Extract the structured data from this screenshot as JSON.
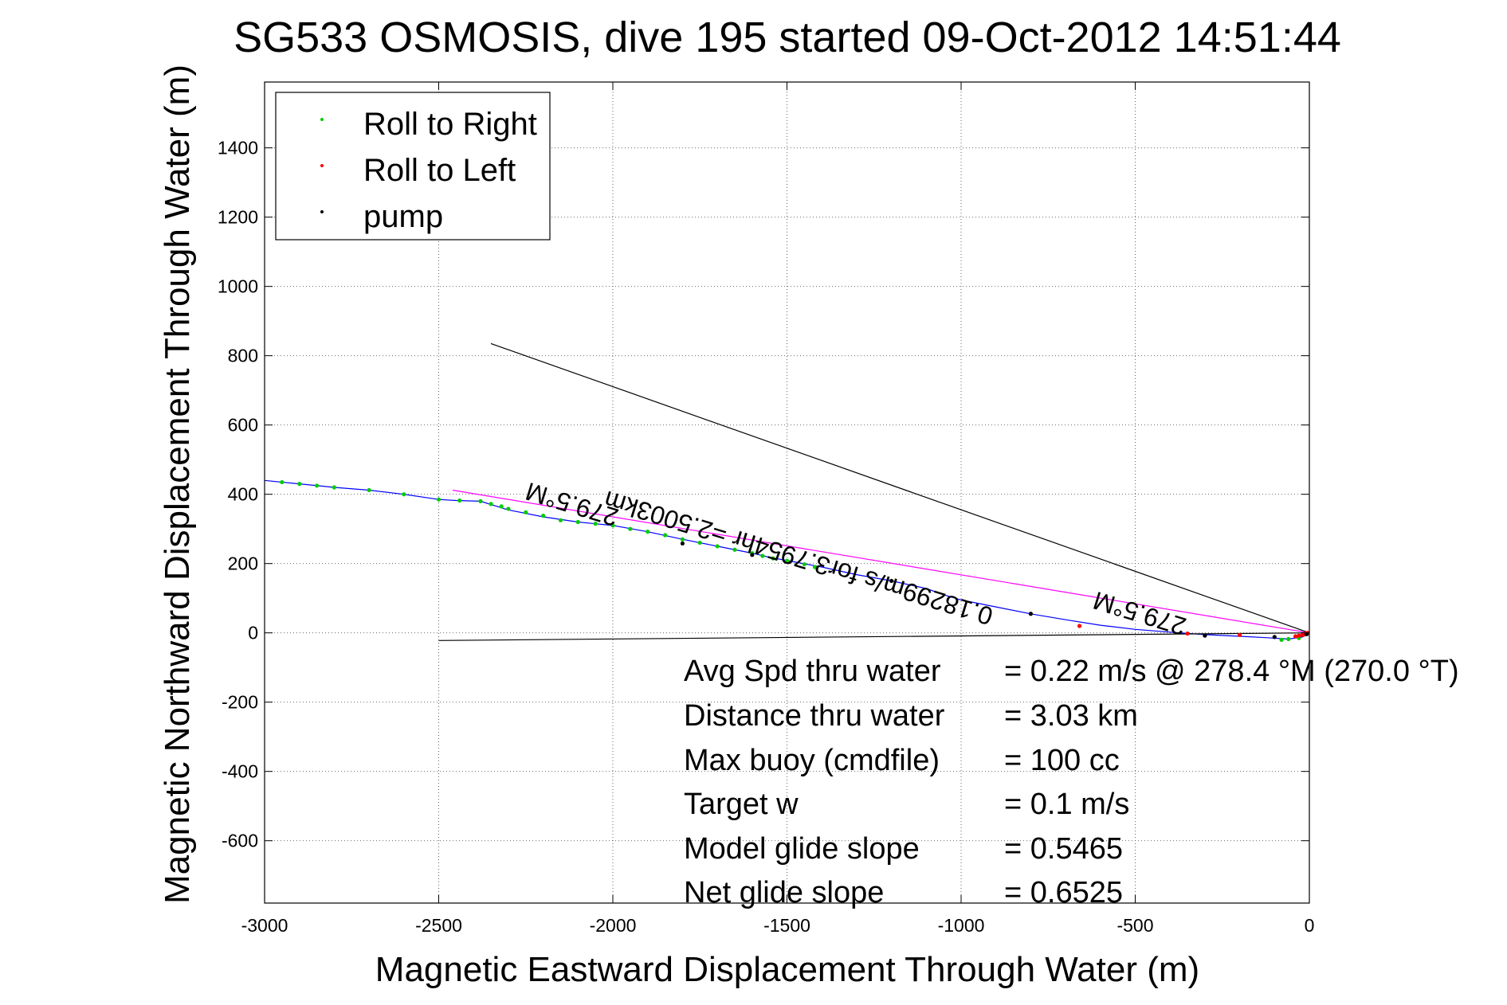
{
  "chart_data": {
    "type": "line",
    "title": "SG533 OSMOSIS, dive 195 started 09-Oct-2012 14:51:44",
    "xlabel": "Magnetic Eastward Displacement Through Water (m)",
    "ylabel": "Magnetic Northward Displacement Through Water (m)",
    "xlim": [
      -3000,
      0
    ],
    "ylim": [
      -780,
      1590
    ],
    "xticks": [
      -3000,
      -2500,
      -2000,
      -1500,
      -1000,
      -500,
      0
    ],
    "yticks": [
      -600,
      -400,
      -200,
      0,
      200,
      400,
      600,
      800,
      1000,
      1200,
      1400
    ],
    "grid": true,
    "legend_position": "top-left",
    "legend": [
      {
        "label": "Roll to Right",
        "color": "#00cc00"
      },
      {
        "label": "Roll to Left",
        "color": "#ff0000"
      },
      {
        "label": "pump",
        "color": "#000000"
      }
    ],
    "series": [
      {
        "color": "#0000ff",
        "points": [
          [
            0,
            -2
          ],
          [
            -20,
            -12
          ],
          [
            -60,
            -18
          ],
          [
            -120,
            -14
          ],
          [
            -200,
            -10
          ],
          [
            -300,
            -5
          ],
          [
            -400,
            2
          ],
          [
            -500,
            10
          ],
          [
            -600,
            22
          ],
          [
            -700,
            38
          ],
          [
            -800,
            55
          ],
          [
            -900,
            75
          ],
          [
            -1000,
            95
          ],
          [
            -1050,
            110
          ],
          [
            -1100,
            128
          ],
          [
            -1200,
            150
          ],
          [
            -1300,
            168
          ],
          [
            -1400,
            190
          ],
          [
            -1480,
            205
          ],
          [
            -1550,
            218
          ],
          [
            -1600,
            230
          ],
          [
            -1700,
            250
          ],
          [
            -1800,
            270
          ],
          [
            -1900,
            292
          ],
          [
            -2000,
            310
          ],
          [
            -2050,
            315
          ],
          [
            -2100,
            320
          ],
          [
            -2200,
            335
          ],
          [
            -2300,
            355
          ],
          [
            -2380,
            380
          ],
          [
            -2450,
            382
          ],
          [
            -2500,
            385
          ],
          [
            -2600,
            400
          ],
          [
            -2700,
            412
          ],
          [
            -2800,
            420
          ],
          [
            -2900,
            430
          ],
          [
            -3000,
            440
          ]
        ]
      },
      {
        "color": "#ff00ff",
        "points": [
          [
            0,
            0
          ],
          [
            -2460,
            412
          ]
        ]
      },
      {
        "color": "#000000",
        "points": [
          [
            0,
            0
          ],
          [
            -2350,
            835
          ]
        ]
      },
      {
        "color": "#000000",
        "points": [
          [
            0,
            0
          ],
          [
            -2500,
            -22
          ]
        ]
      },
      {
        "name": "Roll to Right",
        "color": "#00cc00",
        "markers": true,
        "points": [
          [
            -2950,
            435
          ],
          [
            -2900,
            430
          ],
          [
            -2850,
            425
          ],
          [
            -2800,
            420
          ],
          [
            -2700,
            412
          ],
          [
            -2600,
            400
          ],
          [
            -2500,
            385
          ],
          [
            -2440,
            382
          ],
          [
            -2380,
            380
          ],
          [
            -2350,
            372
          ],
          [
            -2320,
            365
          ],
          [
            -2300,
            358
          ],
          [
            -2250,
            348
          ],
          [
            -2200,
            338
          ],
          [
            -2150,
            325
          ],
          [
            -2100,
            320
          ],
          [
            -2050,
            315
          ],
          [
            -2000,
            310
          ],
          [
            -1950,
            300
          ],
          [
            -1900,
            292
          ],
          [
            -1850,
            282
          ],
          [
            -1800,
            270
          ],
          [
            -1750,
            260
          ],
          [
            -1700,
            250
          ],
          [
            -1650,
            240
          ],
          [
            -1600,
            230
          ],
          [
            -1570,
            222
          ],
          [
            -1540,
            215
          ],
          [
            -1500,
            208
          ],
          [
            -1450,
            198
          ],
          [
            -1420,
            190
          ],
          [
            -80,
            -20
          ],
          [
            -60,
            -18
          ],
          [
            -30,
            -15
          ]
        ]
      },
      {
        "name": "Roll to Left",
        "color": "#ff0000",
        "markers": true,
        "points": [
          [
            -660,
            20
          ],
          [
            -350,
            -2
          ],
          [
            -200,
            -6
          ],
          [
            -40,
            -10
          ],
          [
            -30,
            -8
          ],
          [
            -20,
            -6
          ],
          [
            -15,
            -4
          ],
          [
            -10,
            -2
          ],
          [
            -5,
            0
          ]
        ]
      },
      {
        "name": "pump",
        "color": "#000000",
        "markers": true,
        "points": [
          [
            -1800,
            258
          ],
          [
            -1600,
            225
          ],
          [
            -1200,
            150
          ],
          [
            -800,
            55
          ],
          [
            -300,
            -8
          ],
          [
            -100,
            -12
          ],
          [
            -8,
            -4
          ]
        ]
      }
    ],
    "annotations": [
      {
        "text": "279.5°M",
        "x": -2110,
        "y": 395,
        "rotate": 197
      },
      {
        "text": "0.18299m/s for3.7954hr =2.5003km",
        "x": -1460,
        "y": 240,
        "rotate": 197
      },
      {
        "text": "279.5°M",
        "x": -480,
        "y": 80,
        "rotate": 197
      }
    ],
    "summary": [
      {
        "label": "Avg Spd thru water",
        "value": "=  0.22 m/s @ 278.4 °M (270.0 °T)"
      },
      {
        "label": "Distance thru water",
        "value": "=  3.03 km"
      },
      {
        "label": "Max buoy (cmdfile)",
        "value": "= 100 cc"
      },
      {
        "label": "Target w",
        "value": "= 0.1 m/s"
      },
      {
        "label": "Model glide slope",
        "value": "= 0.5465"
      },
      {
        "label": "Net glide slope",
        "value": "= 0.6525"
      }
    ]
  }
}
